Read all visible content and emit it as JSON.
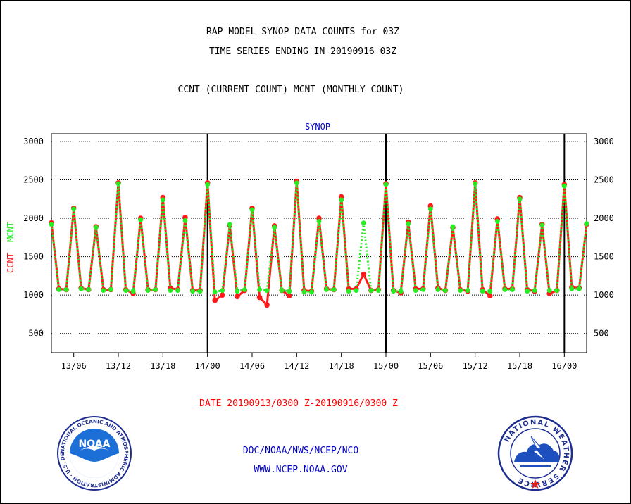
{
  "header": {
    "title_line1": "RAP MODEL SYNOP DATA COUNTS for 03Z",
    "title_line2": "TIME SERIES ENDING IN 20190916 03Z",
    "subtitle": "CCNT (CURRENT COUNT) MCNT (MONTHLY COUNT)"
  },
  "footer": {
    "date_range": "DATE 20190913/0300 Z-20190916/0300 Z",
    "org_line": "DOC/NOAA/NWS/NCEP/NCO",
    "website": "WWW.NCEP.NOAA.GOV"
  },
  "logos": {
    "noaa_center": "NOAA",
    "noaa_ring": "NATIONAL OCEANIC AND ATMOSPHERIC ADMINISTRATION · U.S. DEPARTMENT OF COMMERCE ·",
    "nws_ring": "NATIONAL WEATHER SERVICE"
  },
  "colors": {
    "ccnt": "#ff1a1a",
    "mcnt": "#22ee22",
    "title_dataset": "#0000cc",
    "footer_blue": "#0000cc",
    "date_red": "#ff0000"
  },
  "chart_data": {
    "type": "line",
    "title": "SYNOP",
    "ylabel_ccnt": "CCNT",
    "ylabel_mcnt": "MCNT",
    "ylim": [
      250,
      3100
    ],
    "xlim": [
      0,
      72
    ],
    "yticks": [
      500,
      1000,
      1500,
      2000,
      2500,
      3000
    ],
    "xticks": [
      {
        "x": 3,
        "label": "13/06"
      },
      {
        "x": 9,
        "label": "13/12"
      },
      {
        "x": 15,
        "label": "13/18"
      },
      {
        "x": 21,
        "label": "14/00"
      },
      {
        "x": 27,
        "label": "14/06"
      },
      {
        "x": 33,
        "label": "14/12"
      },
      {
        "x": 39,
        "label": "14/18"
      },
      {
        "x": 45,
        "label": "15/00"
      },
      {
        "x": 51,
        "label": "15/06"
      },
      {
        "x": 57,
        "label": "15/12"
      },
      {
        "x": 63,
        "label": "15/18"
      },
      {
        "x": 69,
        "label": "16/00"
      }
    ],
    "day_boundaries": [
      21,
      45,
      69
    ],
    "grid": "horizontal dotted",
    "series": [
      {
        "name": "CCNT",
        "values": [
          1940,
          1080,
          1070,
          2130,
          1090,
          1070,
          1890,
          1070,
          1070,
          2460,
          1070,
          1020,
          2000,
          1070,
          1070,
          2270,
          1090,
          1070,
          2010,
          1060,
          1060,
          2460,
          930,
          1000,
          1910,
          980,
          1060,
          2130,
          970,
          870,
          1900,
          1060,
          990,
          2480,
          1060,
          1050,
          2000,
          1080,
          1070,
          2280,
          1080,
          1080,
          1270,
          1060,
          1070,
          2450,
          1060,
          1030,
          1950,
          1080,
          1080,
          2160,
          1090,
          1060,
          1880,
          1070,
          1050,
          2460,
          1070,
          990,
          1990,
          1080,
          1080,
          2270,
          1070,
          1050,
          1920,
          1020,
          1060,
          2440,
          1100,
          1090,
          1920
        ]
      },
      {
        "name": "MCNT",
        "values": [
          1920,
          1070,
          1070,
          2120,
          1080,
          1070,
          1880,
          1060,
          1070,
          2450,
          1060,
          1050,
          1980,
          1060,
          1070,
          2240,
          1060,
          1060,
          1970,
          1050,
          1050,
          2440,
          1040,
          1060,
          1920,
          1050,
          1070,
          2110,
          1070,
          1060,
          1880,
          1060,
          1050,
          2460,
          1040,
          1040,
          1960,
          1070,
          1070,
          2240,
          1050,
          1060,
          1940,
          1060,
          1060,
          2440,
          1050,
          1050,
          1930,
          1060,
          1070,
          2120,
          1070,
          1060,
          1890,
          1060,
          1060,
          2450,
          1050,
          1050,
          1960,
          1070,
          1070,
          2250,
          1050,
          1060,
          1910,
          1060,
          1060,
          2420,
          1080,
          1080,
          1930
        ]
      }
    ]
  }
}
